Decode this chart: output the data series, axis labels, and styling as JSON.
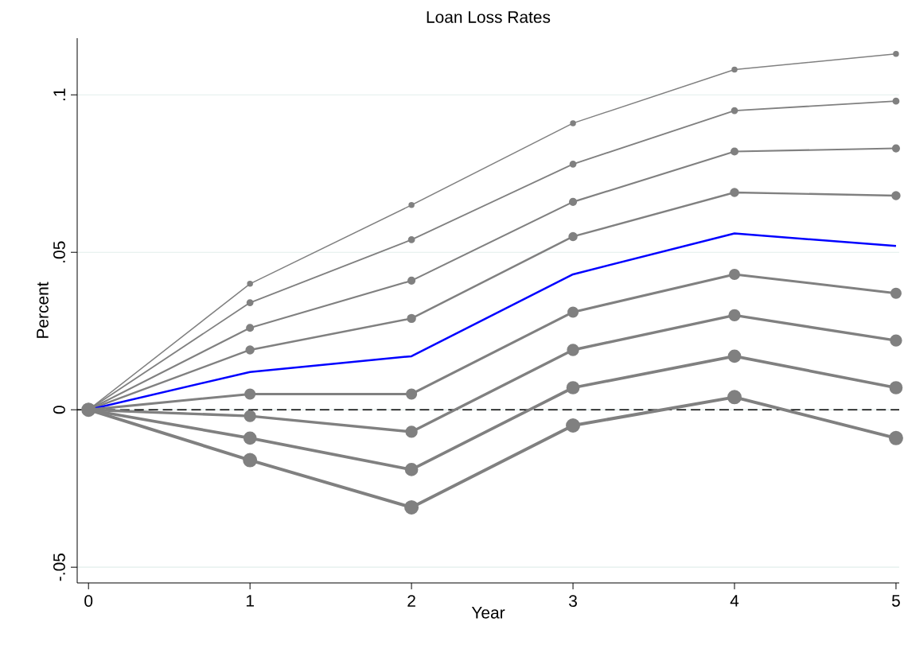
{
  "chart_data": {
    "type": "line",
    "title": "Loan Loss Rates",
    "xlabel": "Year",
    "ylabel": "Percent",
    "x": [
      0,
      1,
      2,
      3,
      4,
      5
    ],
    "series": [
      {
        "color": "#808080",
        "marker": "circle",
        "values": [
          0,
          0.04,
          0.065,
          0.091,
          0.108,
          0.113
        ]
      },
      {
        "color": "#808080",
        "marker": "circle",
        "values": [
          0,
          0.034,
          0.054,
          0.078,
          0.095,
          0.098
        ]
      },
      {
        "color": "#808080",
        "marker": "circle",
        "values": [
          0,
          0.026,
          0.041,
          0.066,
          0.082,
          0.083
        ]
      },
      {
        "color": "#808080",
        "marker": "circle",
        "values": [
          0,
          0.019,
          0.029,
          0.055,
          0.069,
          0.068
        ]
      },
      {
        "color": "#0000ff",
        "marker": "none",
        "values": [
          0,
          0.012,
          0.017,
          0.043,
          0.056,
          0.052
        ]
      },
      {
        "color": "#808080",
        "marker": "circle",
        "values": [
          0,
          0.005,
          0.005,
          0.031,
          0.043,
          0.037
        ]
      },
      {
        "color": "#808080",
        "marker": "circle",
        "values": [
          0,
          -0.002,
          -0.007,
          0.019,
          0.03,
          0.022
        ]
      },
      {
        "color": "#808080",
        "marker": "circle",
        "values": [
          0,
          -0.009,
          -0.019,
          0.007,
          0.017,
          0.007
        ]
      },
      {
        "color": "#808080",
        "marker": "circle",
        "values": [
          0,
          -0.016,
          -0.031,
          -0.005,
          0.004,
          -0.009
        ]
      }
    ],
    "xlim": [
      -0.07,
      5.02
    ],
    "ylim": [
      -0.055,
      0.118
    ],
    "xticks": [
      0,
      1,
      2,
      3,
      4,
      5
    ],
    "yticks": [
      {
        "value": -0.05,
        "label": "-.05"
      },
      0,
      {
        "value": 0.05,
        "label": ".05"
      },
      {
        "value": 0.1,
        "label": ".1"
      }
    ],
    "grid": "y",
    "line_style": "solid",
    "ref_lines": [
      {
        "axis": "y",
        "value": 0,
        "color": "#000000",
        "line_style": "dashed"
      }
    ]
  }
}
